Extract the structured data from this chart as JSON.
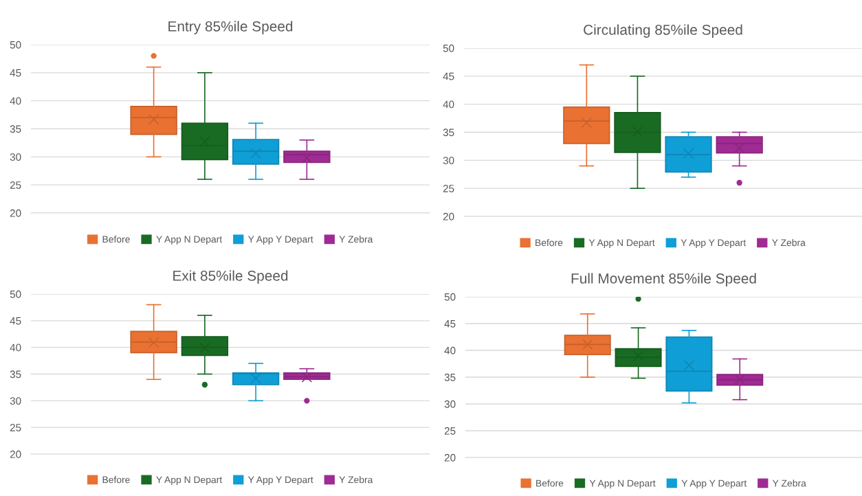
{
  "chart_data": [
    {
      "type": "box",
      "title": "Entry 85%ile Speed",
      "categories": [
        null
      ],
      "ylim": [
        20,
        50
      ],
      "yticks": [
        20,
        25,
        30,
        35,
        40,
        45,
        50
      ],
      "grid": "y",
      "legend": "bottom",
      "tick_labels": "y",
      "series": [
        {
          "name": "Before",
          "color": "#e97132",
          "boxes": [
            {
              "low": 30,
              "q1": 34,
              "median": 37,
              "q3": 39,
              "high": 46,
              "mean": 36.7,
              "outliers": [
                48
              ]
            }
          ]
        },
        {
          "name": "Y App N Depart",
          "color": "#196b24",
          "boxes": [
            {
              "low": 26,
              "q1": 29.5,
              "median": 32,
              "q3": 36,
              "high": 45,
              "mean": 32.7
            }
          ]
        },
        {
          "name": "Y App Y Depart",
          "color": "#0f9ed5",
          "boxes": [
            {
              "low": 26,
              "q1": 28.7,
              "median": 31,
              "q3": 33.1,
              "high": 36,
              "mean": 30.6
            }
          ]
        },
        {
          "name": "Y Zebra",
          "color": "#a02b93",
          "boxes": [
            {
              "low": 26,
              "q1": 29,
              "median": 30.4,
              "q3": 31,
              "high": 33,
              "mean": 29.8
            }
          ]
        }
      ]
    },
    {
      "type": "box",
      "title": "Circulating 85%ile Speed",
      "categories": [
        null
      ],
      "ylim": [
        20,
        50
      ],
      "yticks": [
        20,
        25,
        30,
        35,
        40,
        45,
        50
      ],
      "grid": "y",
      "legend": "bottom",
      "tick_labels": "y",
      "series": [
        {
          "name": "Before",
          "color": "#e97132",
          "boxes": [
            {
              "low": 29,
              "q1": 33,
              "median": 37,
              "q3": 39.5,
              "high": 47,
              "mean": 36.7
            }
          ]
        },
        {
          "name": "Y App N Depart",
          "color": "#196b24",
          "boxes": [
            {
              "low": 25,
              "q1": 31.4,
              "median": 35,
              "q3": 38.5,
              "high": 45,
              "mean": 35.1
            }
          ]
        },
        {
          "name": "Y App Y Depart",
          "color": "#0f9ed5",
          "boxes": [
            {
              "low": 27,
              "q1": 27.9,
              "median": 31,
              "q3": 34.2,
              "high": 35,
              "mean": 31.2
            }
          ]
        },
        {
          "name": "Y Zebra",
          "color": "#a02b93",
          "boxes": [
            {
              "low": 29,
              "q1": 31.3,
              "median": 33,
              "q3": 34.2,
              "high": 35,
              "mean": 32.2,
              "outliers": [
                26
              ]
            }
          ]
        }
      ]
    },
    {
      "type": "box",
      "title": "Exit 85%ile Speed",
      "categories": [
        null
      ],
      "ylim": [
        20,
        50
      ],
      "yticks": [
        20,
        25,
        30,
        35,
        40,
        45,
        50
      ],
      "grid": "y",
      "legend": "bottom",
      "tick_labels": "y",
      "series": [
        {
          "name": "Before",
          "color": "#e97132",
          "boxes": [
            {
              "low": 34,
              "q1": 39,
              "median": 41,
              "q3": 43,
              "high": 48,
              "mean": 40.9
            }
          ]
        },
        {
          "name": "Y App N Depart",
          "color": "#196b24",
          "boxes": [
            {
              "low": 35,
              "q1": 38.5,
              "median": 40,
              "q3": 42,
              "high": 46,
              "mean": 39.9,
              "outliers": [
                33
              ]
            }
          ]
        },
        {
          "name": "Y App Y Depart",
          "color": "#0f9ed5",
          "boxes": [
            {
              "low": 30,
              "q1": 33,
              "median": 35.1,
              "q3": 35.2,
              "high": 37,
              "mean": 34.2
            }
          ]
        },
        {
          "name": "Y Zebra",
          "color": "#a02b93",
          "boxes": [
            {
              "low": 34,
              "q1": 34,
              "median": 34.5,
              "q3": 35.2,
              "high": 36,
              "mean": 34.4,
              "outliers": [
                30
              ]
            }
          ]
        }
      ]
    },
    {
      "type": "box",
      "title": "Full Movement 85%ile Speed",
      "categories": [
        null
      ],
      "ylim": [
        20,
        50
      ],
      "yticks": [
        20,
        25,
        30,
        35,
        40,
        45,
        50
      ],
      "grid": "y",
      "legend": "bottom",
      "tick_labels": "y",
      "series": [
        {
          "name": "Before",
          "color": "#e97132",
          "boxes": [
            {
              "low": 35,
              "q1": 39.2,
              "median": 41.1,
              "q3": 42.8,
              "high": 46.8,
              "mean": 41.1
            }
          ]
        },
        {
          "name": "Y App N Depart",
          "color": "#196b24",
          "boxes": [
            {
              "low": 34.8,
              "q1": 37,
              "median": 38.7,
              "q3": 40.3,
              "high": 44.2,
              "mean": 39,
              "outliers": [
                49.6
              ]
            }
          ]
        },
        {
          "name": "Y App Y Depart",
          "color": "#0f9ed5",
          "boxes": [
            {
              "low": 30.2,
              "q1": 32.4,
              "median": 36.1,
              "q3": 42.5,
              "high": 43.7,
              "mean": 37.2
            }
          ]
        },
        {
          "name": "Y Zebra",
          "color": "#a02b93",
          "boxes": [
            {
              "low": 30.8,
              "q1": 33.5,
              "median": 34.5,
              "q3": 35.5,
              "high": 38.4,
              "mean": 34.6
            }
          ]
        }
      ]
    }
  ]
}
